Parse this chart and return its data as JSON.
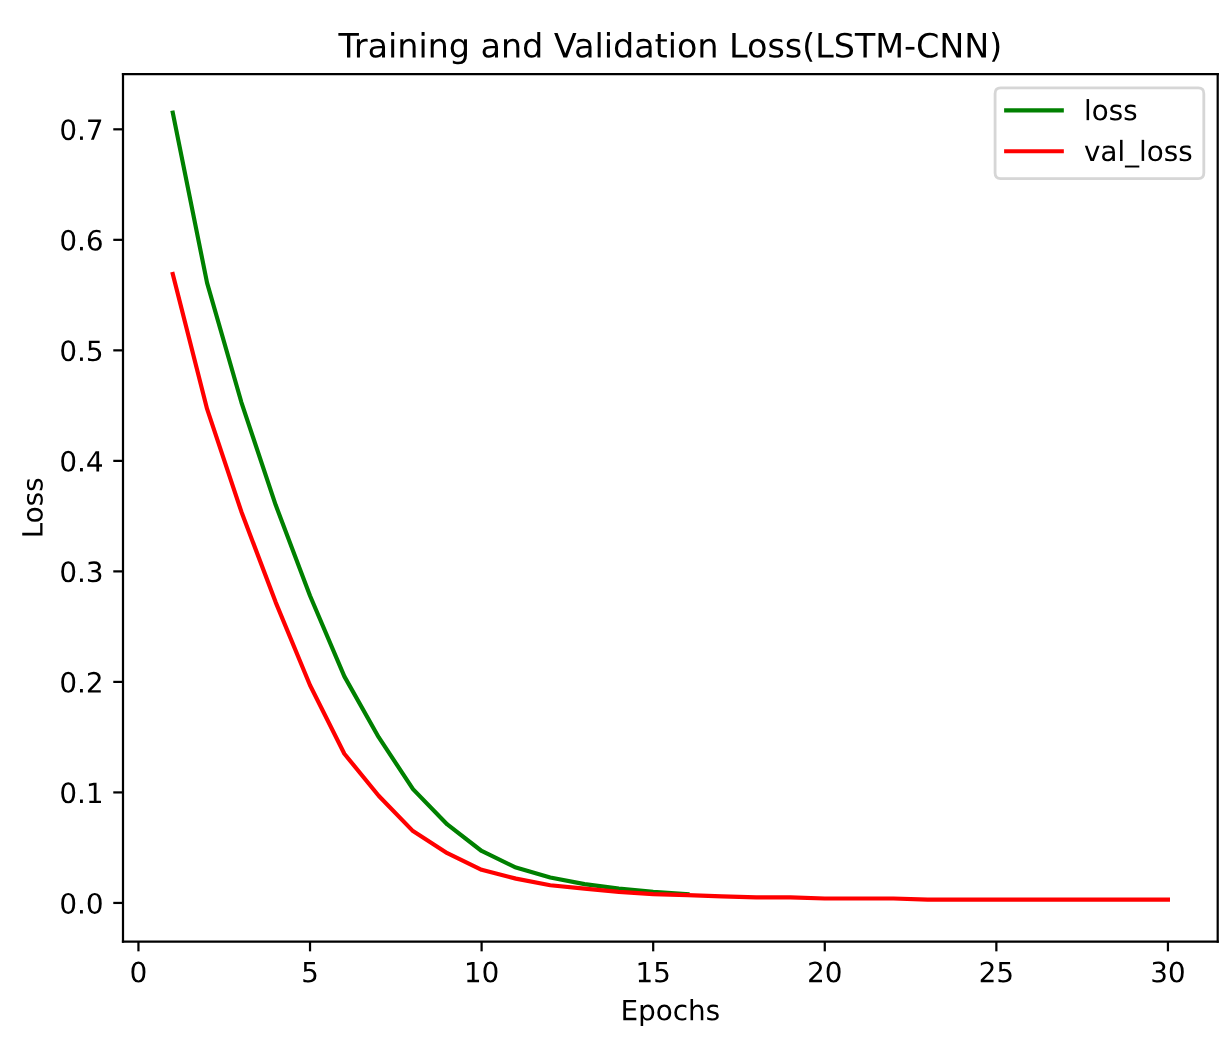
{
  "chart_data": {
    "type": "line",
    "title": "Training and Validation Loss(LSTM-CNN)",
    "xlabel": "Epochs",
    "ylabel": "Loss",
    "x": [
      1,
      2,
      3,
      4,
      5,
      6,
      7,
      8,
      9,
      10,
      11,
      12,
      13,
      14,
      15,
      16,
      17,
      18,
      19,
      20,
      21,
      22,
      23,
      24,
      25,
      26,
      27,
      28,
      29,
      30
    ],
    "series": [
      {
        "name": "loss",
        "color": "#008000",
        "values": [
          0.715,
          0.561,
          0.453,
          0.36,
          0.278,
          0.205,
          0.15,
          0.103,
          0.071,
          0.047,
          0.032,
          0.023,
          0.017,
          0.013,
          0.01,
          0.008,
          null,
          null,
          null,
          null,
          null,
          null,
          null,
          null,
          null,
          null,
          null,
          null,
          null,
          null
        ]
      },
      {
        "name": "val_loss",
        "color": "#ff0000",
        "values": [
          0.569,
          0.447,
          0.354,
          0.272,
          0.197,
          0.135,
          0.097,
          0.065,
          0.045,
          0.03,
          0.022,
          0.016,
          0.013,
          0.01,
          0.008,
          0.007,
          0.006,
          0.005,
          0.005,
          0.004,
          0.004,
          0.004,
          0.003,
          0.003,
          0.003,
          0.003,
          0.003,
          0.003,
          0.003,
          0.003
        ]
      }
    ],
    "xlim": [
      -0.45,
      31.45
    ],
    "ylim": [
      -0.035,
      0.75
    ],
    "xticks": [
      0,
      5,
      10,
      15,
      20,
      25,
      30
    ],
    "yticks": [
      {
        "value": 0,
        "label": "0.0"
      },
      0.1,
      0.2,
      0.3,
      0.4,
      0.5,
      0.6,
      0.7
    ],
    "legend": "top right",
    "grid": false,
    "marker": "none",
    "line_style": "solid"
  }
}
